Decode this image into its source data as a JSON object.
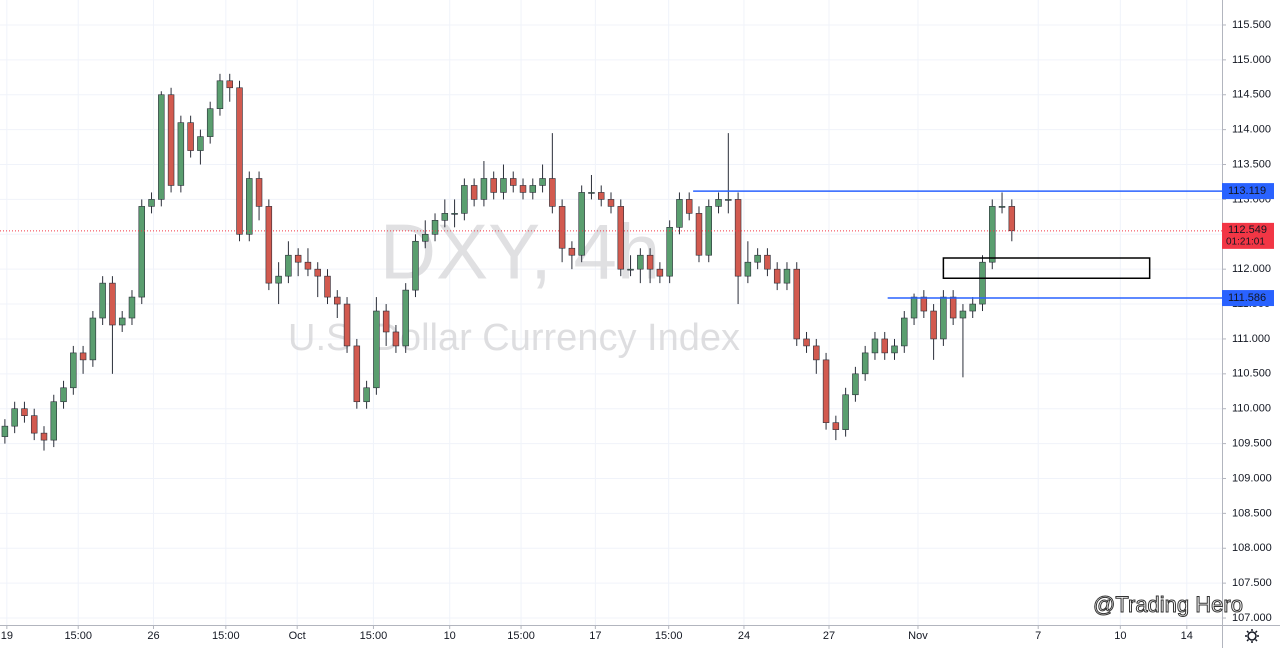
{
  "chart_data": {
    "type": "candlestick",
    "watermark_symbol": "DXY, 4h",
    "watermark_name": "U.S. Dollar Currency Index",
    "brand": "@Trading Hero",
    "up_color": "#5a9e6f",
    "down_color": "#d25a4f",
    "grid": true,
    "xlim": [
      -0.5,
      124.5
    ],
    "ylim": [
      106.9,
      115.858
    ],
    "xticks": [
      {
        "value": 0.2,
        "label": "19"
      },
      {
        "value": 7.5,
        "label": "15:00"
      },
      {
        "value": 15.2,
        "label": "26"
      },
      {
        "value": 22.6,
        "label": "15:00"
      },
      {
        "value": 29.9,
        "label": "Oct"
      },
      {
        "value": 37.7,
        "label": "15:00"
      },
      {
        "value": 45.5,
        "label": "10"
      },
      {
        "value": 52.8,
        "label": "15:00"
      },
      {
        "value": 60.4,
        "label": "17"
      },
      {
        "value": 67.9,
        "label": "15:00"
      },
      {
        "value": 75.6,
        "label": "24"
      },
      {
        "value": 84.3,
        "label": "27"
      },
      {
        "value": 93.4,
        "label": "Nov"
      },
      {
        "value": 105.7,
        "label": "7"
      },
      {
        "value": 114.1,
        "label": "10"
      },
      {
        "value": 120.9,
        "label": "14"
      }
    ],
    "yticks": [
      {
        "value": 107,
        "label": "107.000"
      },
      {
        "value": 107.5,
        "label": "107.500"
      },
      {
        "value": 108,
        "label": "108.000"
      },
      {
        "value": 108.5,
        "label": "108.500"
      },
      {
        "value": 109,
        "label": "109.000"
      },
      {
        "value": 109.5,
        "label": "109.500"
      },
      {
        "value": 110,
        "label": "110.000"
      },
      {
        "value": 110.5,
        "label": "110.500"
      },
      {
        "value": 111,
        "label": "111.000"
      },
      {
        "value": 111.5,
        "label": "111.500"
      },
      {
        "value": 112,
        "label": "112.000"
      },
      {
        "value": 112.5,
        "label": "112.500"
      },
      {
        "value": 113,
        "label": "113.000"
      },
      {
        "value": 113.5,
        "label": "113.500"
      },
      {
        "value": 114,
        "label": "114.000"
      },
      {
        "value": 114.5,
        "label": "114.500"
      },
      {
        "value": 115,
        "label": "115.000"
      },
      {
        "value": 115.5,
        "label": "115.500"
      }
    ],
    "open": [
      109.6,
      109.75,
      110.0,
      109.9,
      109.65,
      109.55,
      110.1,
      110.3,
      110.8,
      110.7,
      111.3,
      111.8,
      111.2,
      111.3,
      111.6,
      112.9,
      113.0,
      114.5,
      113.2,
      114.1,
      113.7,
      113.9,
      114.3,
      114.7,
      114.6,
      112.5,
      113.3,
      112.9,
      111.8,
      111.9,
      112.2,
      112.1,
      112.0,
      111.9,
      111.6,
      111.5,
      110.9,
      110.1,
      110.3,
      111.4,
      111.1,
      110.9,
      111.7,
      112.4,
      112.5,
      112.7,
      112.8,
      112.8,
      113.2,
      113.0,
      113.3,
      113.1,
      113.3,
      113.2,
      113.1,
      113.2,
      113.3,
      112.9,
      112.3,
      112.2,
      113.1,
      113.1,
      113.0,
      112.9,
      112.0,
      112.0,
      112.2,
      112.0,
      111.9,
      112.6,
      113.0,
      112.8,
      112.2,
      112.9,
      113.0,
      113.0,
      111.9,
      112.1,
      112.2,
      112.0,
      111.8,
      112.0,
      111.0,
      110.9,
      110.7,
      109.8,
      109.7,
      110.2,
      110.5,
      110.8,
      111.0,
      110.8,
      110.9,
      111.3,
      111.6,
      111.4,
      111.0,
      111.6,
      111.3,
      111.4,
      111.5,
      112.1,
      112.9,
      112.9
    ],
    "high": [
      109.85,
      110.1,
      110.1,
      110.0,
      109.75,
      110.2,
      110.4,
      110.9,
      110.9,
      111.4,
      111.9,
      111.9,
      111.4,
      111.7,
      113.0,
      113.1,
      114.55,
      114.6,
      114.2,
      114.2,
      114.0,
      114.4,
      114.8,
      114.8,
      114.7,
      113.4,
      113.4,
      113.0,
      112.1,
      112.4,
      112.3,
      112.3,
      112.1,
      112.0,
      111.7,
      111.6,
      111.0,
      110.4,
      111.6,
      111.5,
      111.2,
      111.8,
      112.5,
      112.7,
      112.8,
      113.0,
      113.0,
      113.3,
      113.3,
      113.55,
      113.4,
      113.5,
      113.4,
      113.3,
      113.3,
      113.5,
      113.95,
      113.0,
      112.4,
      113.2,
      113.35,
      113.2,
      113.1,
      113.0,
      112.2,
      112.3,
      112.3,
      112.1,
      112.7,
      113.1,
      113.1,
      112.9,
      113.0,
      113.1,
      113.95,
      113.1,
      112.4,
      112.3,
      112.3,
      112.1,
      112.1,
      112.1,
      111.1,
      111.0,
      110.8,
      109.9,
      110.3,
      110.6,
      110.9,
      111.1,
      111.1,
      111.0,
      111.4,
      111.65,
      111.7,
      111.5,
      111.7,
      111.7,
      111.5,
      111.6,
      112.2,
      113.0,
      113.1,
      113.0
    ],
    "low": [
      109.5,
      109.65,
      109.8,
      109.55,
      109.4,
      109.45,
      110.0,
      110.2,
      110.5,
      110.6,
      111.2,
      110.5,
      111.1,
      111.2,
      111.5,
      112.8,
      112.9,
      113.1,
      113.1,
      113.6,
      113.5,
      113.8,
      114.2,
      114.4,
      112.4,
      112.4,
      112.7,
      111.7,
      111.5,
      111.8,
      111.9,
      111.9,
      111.6,
      111.5,
      111.3,
      110.8,
      110.0,
      110.0,
      110.2,
      110.9,
      110.8,
      110.8,
      111.6,
      112.3,
      112.4,
      112.6,
      112.6,
      112.7,
      112.9,
      112.9,
      113.0,
      113.0,
      113.1,
      113.0,
      113.0,
      113.1,
      112.8,
      112.1,
      112.0,
      112.1,
      113.0,
      112.9,
      112.8,
      111.9,
      111.9,
      111.8,
      111.8,
      111.8,
      111.8,
      112.5,
      112.7,
      112.1,
      112.1,
      112.8,
      112.8,
      111.5,
      111.8,
      112.0,
      111.9,
      111.7,
      111.7,
      110.9,
      110.8,
      110.5,
      109.7,
      109.55,
      109.6,
      110.1,
      110.4,
      110.7,
      110.7,
      110.7,
      110.8,
      111.2,
      111.3,
      110.7,
      110.9,
      111.2,
      110.45,
      111.3,
      111.4,
      112.0,
      112.8,
      112.4
    ],
    "close": [
      109.75,
      110.0,
      109.9,
      109.65,
      109.55,
      110.1,
      110.3,
      110.8,
      110.7,
      111.3,
      111.8,
      111.2,
      111.3,
      111.6,
      112.9,
      113.0,
      114.5,
      113.2,
      114.1,
      113.7,
      113.9,
      114.3,
      114.7,
      114.6,
      112.5,
      113.3,
      112.9,
      111.8,
      111.9,
      112.2,
      112.1,
      112.0,
      111.9,
      111.6,
      111.5,
      110.9,
      110.1,
      110.3,
      111.4,
      111.1,
      110.9,
      111.7,
      112.4,
      112.5,
      112.7,
      112.8,
      112.8,
      113.2,
      113.0,
      113.3,
      113.1,
      113.3,
      113.2,
      113.1,
      113.2,
      113.3,
      112.9,
      112.3,
      112.2,
      113.1,
      113.1,
      113.0,
      112.9,
      112.0,
      112.0,
      112.2,
      112.0,
      111.9,
      112.6,
      113.0,
      112.8,
      112.2,
      112.9,
      113.0,
      113.0,
      111.9,
      112.1,
      112.2,
      112.0,
      111.8,
      112.0,
      111.0,
      110.9,
      110.7,
      109.8,
      109.7,
      110.2,
      110.5,
      110.8,
      111.0,
      110.8,
      110.9,
      111.3,
      111.6,
      111.4,
      111.0,
      111.6,
      111.3,
      111.4,
      111.5,
      112.1,
      112.9,
      112.9,
      112.55
    ],
    "levels": [
      {
        "value": 113.119,
        "label": "113.119",
        "from": 70.4,
        "color": "#2962ff"
      },
      {
        "value": 111.586,
        "label": "111.586",
        "from": 90.3,
        "color": "#2962ff"
      }
    ],
    "zone": {
      "x": [
        96.0,
        117.1
      ],
      "y": [
        111.87,
        112.16
      ]
    },
    "last_price": {
      "value": 112.549,
      "label": "112.549",
      "countdown": "01:21:01",
      "color": "#f23645"
    }
  }
}
